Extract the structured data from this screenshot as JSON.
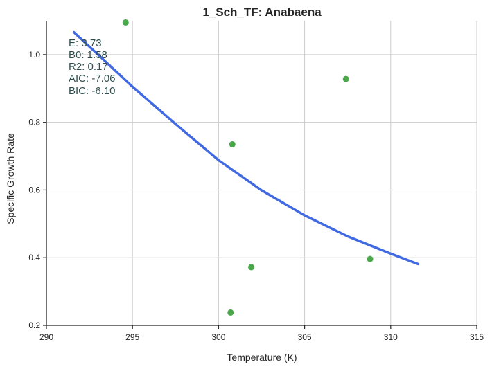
{
  "chart_data": {
    "type": "scatter",
    "title": "1_Sch_TF: Anabaena",
    "xlabel": "Temperature (K)",
    "ylabel": "Specific Growth Rate",
    "xlim": [
      290,
      315
    ],
    "ylim": [
      0.2,
      1.1
    ],
    "x_ticks": [
      "290",
      "295",
      "300",
      "305",
      "310",
      "315"
    ],
    "y_ticks": [
      "0.2",
      "0.4",
      "0.6",
      "0.8",
      "1.0"
    ],
    "grid": true,
    "series": [
      {
        "type": "scatter",
        "color": "#4aa84a",
        "points": [
          {
            "x": 294.6,
            "y": 1.095
          },
          {
            "x": 300.8,
            "y": 0.735
          },
          {
            "x": 300.7,
            "y": 0.238
          },
          {
            "x": 301.9,
            "y": 0.372
          },
          {
            "x": 307.4,
            "y": 0.928
          },
          {
            "x": 308.8,
            "y": 0.396
          }
        ]
      },
      {
        "type": "line",
        "color": "#4169e1",
        "points": [
          {
            "x": 291.6,
            "y": 1.066
          },
          {
            "x": 293.0,
            "y": 1.0
          },
          {
            "x": 295.0,
            "y": 0.905
          },
          {
            "x": 297.5,
            "y": 0.795
          },
          {
            "x": 300.0,
            "y": 0.688
          },
          {
            "x": 302.5,
            "y": 0.599
          },
          {
            "x": 305.0,
            "y": 0.525
          },
          {
            "x": 307.5,
            "y": 0.463
          },
          {
            "x": 310.0,
            "y": 0.412
          },
          {
            "x": 311.6,
            "y": 0.381
          }
        ]
      }
    ],
    "annotations": [
      "E:  3.73",
      "B0:  1.58",
      "R2:  0.17",
      "AIC: -7.06",
      "BIC: -6.10"
    ]
  }
}
